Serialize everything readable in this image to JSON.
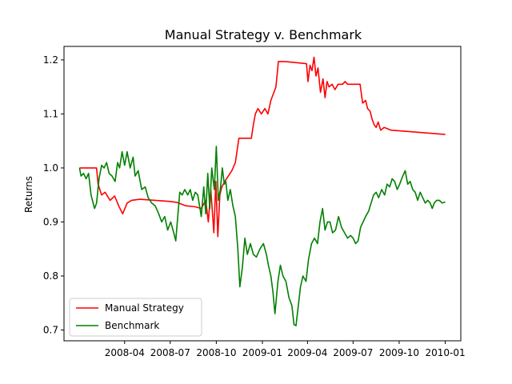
{
  "chart_data": {
    "type": "line",
    "title": "Manual Strategy v. Benchmark",
    "xlabel": "",
    "ylabel": "Returns",
    "x_ticks": [
      "2008-04",
      "2008-07",
      "2008-10",
      "2009-01",
      "2009-04",
      "2009-07",
      "2009-10",
      "2010-01"
    ],
    "y_ticks": [
      "0.7",
      "0.8",
      "0.9",
      "1.0",
      "1.1",
      "1.2"
    ],
    "xlim": [
      "2007-12-02",
      "2010-02-01"
    ],
    "ylim": [
      0.68,
      1.225
    ],
    "grid": false,
    "legend_position": "lower left",
    "series": [
      {
        "name": "Manual Strategy",
        "color": "#ff0000",
        "points": [
          [
            "2008-01-02",
            1.0
          ],
          [
            "2008-02-05",
            1.0
          ],
          [
            "2008-02-08",
            0.97
          ],
          [
            "2008-02-15",
            0.95
          ],
          [
            "2008-02-22",
            0.955
          ],
          [
            "2008-03-03",
            0.94
          ],
          [
            "2008-03-12",
            0.948
          ],
          [
            "2008-03-20",
            0.93
          ],
          [
            "2008-03-28",
            0.915
          ],
          [
            "2008-04-06",
            0.935
          ],
          [
            "2008-04-15",
            0.94
          ],
          [
            "2008-05-01",
            0.942
          ],
          [
            "2008-06-01",
            0.94
          ],
          [
            "2008-07-01",
            0.938
          ],
          [
            "2008-07-15",
            0.936
          ],
          [
            "2008-08-01",
            0.93
          ],
          [
            "2008-08-20",
            0.928
          ],
          [
            "2008-09-01",
            0.925
          ],
          [
            "2008-09-10",
            0.94
          ],
          [
            "2008-09-15",
            0.9
          ],
          [
            "2008-09-20",
            0.96
          ],
          [
            "2008-09-26",
            0.88
          ],
          [
            "2008-09-30",
            0.975
          ],
          [
            "2008-10-04",
            0.873
          ],
          [
            "2008-10-08",
            0.95
          ],
          [
            "2008-10-12",
            0.965
          ],
          [
            "2008-10-18",
            0.975
          ],
          [
            "2008-10-25",
            0.985
          ],
          [
            "2008-11-01",
            0.995
          ],
          [
            "2008-11-08",
            1.01
          ],
          [
            "2008-11-15",
            1.055
          ],
          [
            "2008-12-01",
            1.055
          ],
          [
            "2008-12-10",
            1.055
          ],
          [
            "2008-12-14",
            1.08
          ],
          [
            "2008-12-18",
            1.1
          ],
          [
            "2008-12-23",
            1.11
          ],
          [
            "2008-12-30",
            1.1
          ],
          [
            "2009-01-06",
            1.11
          ],
          [
            "2009-01-12",
            1.1
          ],
          [
            "2009-01-18",
            1.125
          ],
          [
            "2009-01-24",
            1.14
          ],
          [
            "2009-01-28",
            1.15
          ],
          [
            "2009-02-02",
            1.197
          ],
          [
            "2009-02-15",
            1.197
          ],
          [
            "2009-03-30",
            1.193
          ],
          [
            "2009-04-02",
            1.16
          ],
          [
            "2009-04-06",
            1.19
          ],
          [
            "2009-04-10",
            1.18
          ],
          [
            "2009-04-14",
            1.205
          ],
          [
            "2009-04-18",
            1.17
          ],
          [
            "2009-04-22",
            1.185
          ],
          [
            "2009-04-27",
            1.14
          ],
          [
            "2009-05-02",
            1.165
          ],
          [
            "2009-05-06",
            1.13
          ],
          [
            "2009-05-10",
            1.16
          ],
          [
            "2009-05-14",
            1.15
          ],
          [
            "2009-05-20",
            1.155
          ],
          [
            "2009-05-26",
            1.145
          ],
          [
            "2009-06-01",
            1.155
          ],
          [
            "2009-06-10",
            1.155
          ],
          [
            "2009-06-15",
            1.16
          ],
          [
            "2009-06-20",
            1.155
          ],
          [
            "2009-07-01",
            1.155
          ],
          [
            "2009-07-15",
            1.155
          ],
          [
            "2009-07-20",
            1.12
          ],
          [
            "2009-07-26",
            1.125
          ],
          [
            "2009-07-30",
            1.11
          ],
          [
            "2009-08-04",
            1.105
          ],
          [
            "2009-08-08",
            1.09
          ],
          [
            "2009-08-12",
            1.08
          ],
          [
            "2009-08-16",
            1.075
          ],
          [
            "2009-08-20",
            1.085
          ],
          [
            "2009-08-25",
            1.07
          ],
          [
            "2009-09-01",
            1.075
          ],
          [
            "2009-09-15",
            1.07
          ],
          [
            "2010-01-01",
            1.062
          ]
        ]
      },
      {
        "name": "Benchmark",
        "color": "#008000",
        "points": [
          [
            "2008-01-02",
            1.0
          ],
          [
            "2008-01-05",
            0.985
          ],
          [
            "2008-01-10",
            0.99
          ],
          [
            "2008-01-15",
            0.98
          ],
          [
            "2008-01-20",
            0.99
          ],
          [
            "2008-01-25",
            0.95
          ],
          [
            "2008-02-01",
            0.925
          ],
          [
            "2008-02-05",
            0.935
          ],
          [
            "2008-02-10",
            0.98
          ],
          [
            "2008-02-15",
            1.005
          ],
          [
            "2008-02-20",
            1.0
          ],
          [
            "2008-02-25",
            1.01
          ],
          [
            "2008-03-01",
            0.99
          ],
          [
            "2008-03-07",
            0.985
          ],
          [
            "2008-03-13",
            0.975
          ],
          [
            "2008-03-18",
            1.01
          ],
          [
            "2008-03-22",
            1.0
          ],
          [
            "2008-03-27",
            1.03
          ],
          [
            "2008-04-01",
            1.005
          ],
          [
            "2008-04-06",
            1.03
          ],
          [
            "2008-04-12",
            1.0
          ],
          [
            "2008-04-18",
            1.02
          ],
          [
            "2008-04-22",
            0.985
          ],
          [
            "2008-04-28",
            0.995
          ],
          [
            "2008-05-05",
            0.96
          ],
          [
            "2008-05-12",
            0.965
          ],
          [
            "2008-05-18",
            0.945
          ],
          [
            "2008-05-25",
            0.935
          ],
          [
            "2008-06-01",
            0.93
          ],
          [
            "2008-06-08",
            0.915
          ],
          [
            "2008-06-14",
            0.9
          ],
          [
            "2008-06-20",
            0.91
          ],
          [
            "2008-06-26",
            0.885
          ],
          [
            "2008-07-02",
            0.9
          ],
          [
            "2008-07-08",
            0.88
          ],
          [
            "2008-07-12",
            0.865
          ],
          [
            "2008-07-16",
            0.91
          ],
          [
            "2008-07-20",
            0.955
          ],
          [
            "2008-07-25",
            0.95
          ],
          [
            "2008-07-30",
            0.96
          ],
          [
            "2008-08-05",
            0.95
          ],
          [
            "2008-08-10",
            0.96
          ],
          [
            "2008-08-15",
            0.94
          ],
          [
            "2008-08-20",
            0.955
          ],
          [
            "2008-08-25",
            0.95
          ],
          [
            "2008-09-01",
            0.91
          ],
          [
            "2008-09-06",
            0.965
          ],
          [
            "2008-09-10",
            0.915
          ],
          [
            "2008-09-14",
            0.99
          ],
          [
            "2008-09-18",
            0.925
          ],
          [
            "2008-09-22",
            1.0
          ],
          [
            "2008-09-27",
            0.96
          ],
          [
            "2008-10-01",
            1.04
          ],
          [
            "2008-10-05",
            0.94
          ],
          [
            "2008-10-09",
            0.96
          ],
          [
            "2008-10-13",
            1.0
          ],
          [
            "2008-10-17",
            0.97
          ],
          [
            "2008-10-20",
            0.975
          ],
          [
            "2008-10-24",
            0.94
          ],
          [
            "2008-10-29",
            0.96
          ],
          [
            "2008-11-03",
            0.93
          ],
          [
            "2008-11-08",
            0.91
          ],
          [
            "2008-11-13",
            0.85
          ],
          [
            "2008-11-17",
            0.78
          ],
          [
            "2008-11-22",
            0.815
          ],
          [
            "2008-11-27",
            0.87
          ],
          [
            "2008-12-02",
            0.84
          ],
          [
            "2008-12-08",
            0.86
          ],
          [
            "2008-12-14",
            0.84
          ],
          [
            "2008-12-20",
            0.835
          ],
          [
            "2008-12-27",
            0.85
          ],
          [
            "2009-01-03",
            0.86
          ],
          [
            "2009-01-09",
            0.84
          ],
          [
            "2009-01-13",
            0.82
          ],
          [
            "2009-01-18",
            0.8
          ],
          [
            "2009-01-22",
            0.77
          ],
          [
            "2009-01-26",
            0.73
          ],
          [
            "2009-02-01",
            0.79
          ],
          [
            "2009-02-06",
            0.82
          ],
          [
            "2009-02-11",
            0.8
          ],
          [
            "2009-02-17",
            0.79
          ],
          [
            "2009-02-23",
            0.76
          ],
          [
            "2009-03-01",
            0.745
          ],
          [
            "2009-03-05",
            0.71
          ],
          [
            "2009-03-09",
            0.708
          ],
          [
            "2009-03-13",
            0.74
          ],
          [
            "2009-03-18",
            0.78
          ],
          [
            "2009-03-23",
            0.8
          ],
          [
            "2009-03-29",
            0.79
          ],
          [
            "2009-04-03",
            0.83
          ],
          [
            "2009-04-09",
            0.86
          ],
          [
            "2009-04-15",
            0.87
          ],
          [
            "2009-04-21",
            0.86
          ],
          [
            "2009-04-26",
            0.9
          ],
          [
            "2009-05-01",
            0.925
          ],
          [
            "2009-05-06",
            0.885
          ],
          [
            "2009-05-11",
            0.9
          ],
          [
            "2009-05-16",
            0.9
          ],
          [
            "2009-05-21",
            0.88
          ],
          [
            "2009-05-27",
            0.885
          ],
          [
            "2009-06-02",
            0.91
          ],
          [
            "2009-06-08",
            0.89
          ],
          [
            "2009-06-14",
            0.88
          ],
          [
            "2009-06-20",
            0.87
          ],
          [
            "2009-06-26",
            0.875
          ],
          [
            "2009-07-01",
            0.87
          ],
          [
            "2009-07-06",
            0.86
          ],
          [
            "2009-07-11",
            0.865
          ],
          [
            "2009-07-16",
            0.89
          ],
          [
            "2009-07-21",
            0.9
          ],
          [
            "2009-07-26",
            0.91
          ],
          [
            "2009-08-01",
            0.92
          ],
          [
            "2009-08-06",
            0.935
          ],
          [
            "2009-08-11",
            0.95
          ],
          [
            "2009-08-16",
            0.955
          ],
          [
            "2009-08-21",
            0.945
          ],
          [
            "2009-08-27",
            0.96
          ],
          [
            "2009-09-02",
            0.95
          ],
          [
            "2009-09-07",
            0.97
          ],
          [
            "2009-09-12",
            0.965
          ],
          [
            "2009-09-17",
            0.98
          ],
          [
            "2009-09-22",
            0.975
          ],
          [
            "2009-09-27",
            0.96
          ],
          [
            "2009-10-02",
            0.97
          ],
          [
            "2009-10-08",
            0.985
          ],
          [
            "2009-10-13",
            0.995
          ],
          [
            "2009-10-18",
            0.97
          ],
          [
            "2009-10-23",
            0.975
          ],
          [
            "2009-10-28",
            0.96
          ],
          [
            "2009-11-02",
            0.955
          ],
          [
            "2009-11-07",
            0.94
          ],
          [
            "2009-11-12",
            0.955
          ],
          [
            "2009-11-17",
            0.945
          ],
          [
            "2009-11-22",
            0.935
          ],
          [
            "2009-11-27",
            0.94
          ],
          [
            "2009-12-02",
            0.935
          ],
          [
            "2009-12-06",
            0.925
          ],
          [
            "2009-12-10",
            0.935
          ],
          [
            "2009-12-15",
            0.94
          ],
          [
            "2009-12-20",
            0.94
          ],
          [
            "2009-12-26",
            0.935
          ],
          [
            "2010-01-01",
            0.937
          ]
        ]
      }
    ]
  }
}
